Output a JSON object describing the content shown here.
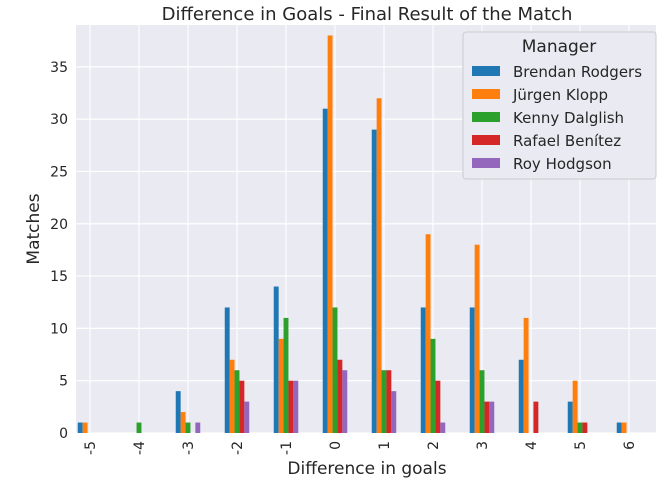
{
  "chart_data": {
    "type": "bar",
    "title": "Difference in Goals - Final Result of the Match",
    "xlabel": "Difference in goals",
    "ylabel": "Matches",
    "ylim": [
      0,
      39
    ],
    "yticks": [
      0,
      5,
      10,
      15,
      20,
      25,
      30,
      35
    ],
    "grid": true,
    "legend": {
      "title": "Manager",
      "placement": "top-right"
    },
    "categories": [
      "-5",
      "-4",
      "-3",
      "-2",
      "-1",
      "0",
      "1",
      "2",
      "3",
      "4",
      "5",
      "6"
    ],
    "series": [
      {
        "name": "Brendan Rodgers",
        "color": "#1f77b4",
        "values": [
          1,
          0,
          4,
          12,
          14,
          31,
          29,
          12,
          12,
          7,
          3,
          1
        ]
      },
      {
        "name": "Jürgen Klopp",
        "color": "#ff7f0e",
        "values": [
          1,
          0,
          2,
          7,
          9,
          38,
          32,
          19,
          18,
          11,
          5,
          1
        ]
      },
      {
        "name": "Kenny Dalglish",
        "color": "#2ca02c",
        "values": [
          0,
          1,
          1,
          6,
          11,
          12,
          6,
          9,
          6,
          0,
          1,
          0
        ]
      },
      {
        "name": "Rafael Benítez",
        "color": "#d62728",
        "values": [
          0,
          0,
          0,
          5,
          5,
          7,
          6,
          5,
          3,
          3,
          1,
          0
        ]
      },
      {
        "name": "Roy Hodgson",
        "color": "#9467bd",
        "values": [
          0,
          0,
          1,
          3,
          5,
          6,
          4,
          1,
          3,
          0,
          0,
          0
        ]
      }
    ]
  }
}
